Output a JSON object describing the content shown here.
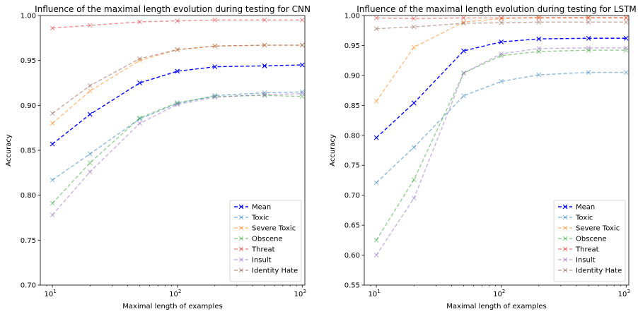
{
  "chart_data": [
    {
      "type": "line",
      "title": "Influence of the maximal length evolution during testing for CNN",
      "xlabel": "Maximal length of examples",
      "ylabel": "Accuracy",
      "xscale": "log",
      "xlim": [
        8,
        1050
      ],
      "ylim": [
        0.7,
        1.0
      ],
      "xticks": [
        {
          "value": 10,
          "base": "10",
          "exp": "1"
        },
        {
          "value": 100,
          "base": "10",
          "exp": "2"
        },
        {
          "value": 1000,
          "base": "10",
          "exp": "3"
        }
      ],
      "yticks": [
        "0.70",
        "0.75",
        "0.80",
        "0.85",
        "0.90",
        "0.95",
        "1.00"
      ],
      "x": [
        10,
        20,
        50,
        100,
        200,
        500,
        1000
      ],
      "legend_position": "lower-right",
      "series": [
        {
          "name": "Mean",
          "color": "#0000ff",
          "alpha": 1.0,
          "values": [
            0.857,
            0.89,
            0.925,
            0.938,
            0.943,
            0.944,
            0.945
          ]
        },
        {
          "name": "Toxic",
          "color": "#1f77b4",
          "alpha": 0.5,
          "values": [
            0.817,
            0.846,
            0.885,
            0.902,
            0.911,
            0.914,
            0.915
          ]
        },
        {
          "name": "Severe Toxic",
          "color": "#ff7f0e",
          "alpha": 0.5,
          "values": [
            0.88,
            0.916,
            0.95,
            0.962,
            0.966,
            0.967,
            0.967
          ]
        },
        {
          "name": "Obscene",
          "color": "#2ca02c",
          "alpha": 0.5,
          "values": [
            0.791,
            0.836,
            0.886,
            0.903,
            0.91,
            0.911,
            0.91
          ]
        },
        {
          "name": "Threat",
          "color": "#d62728",
          "alpha": 0.5,
          "values": [
            0.986,
            0.989,
            0.993,
            0.994,
            0.995,
            0.995,
            0.995
          ]
        },
        {
          "name": "Insult",
          "color": "#9467bd",
          "alpha": 0.5,
          "values": [
            0.778,
            0.826,
            0.88,
            0.901,
            0.909,
            0.912,
            0.913
          ]
        },
        {
          "name": "Identity Hate",
          "color": "#8c564b",
          "alpha": 0.5,
          "values": [
            0.891,
            0.922,
            0.952,
            0.962,
            0.966,
            0.967,
            0.967
          ]
        }
      ]
    },
    {
      "type": "line",
      "title": "Influence of the maximal length evolution during testing for LSTM",
      "xlabel": "Maximal length of examples",
      "ylabel": "Accuracy",
      "xscale": "log",
      "xlim": [
        8,
        1050
      ],
      "ylim": [
        0.55,
        1.0
      ],
      "xticks": [
        {
          "value": 10,
          "base": "10",
          "exp": "1"
        },
        {
          "value": 100,
          "base": "10",
          "exp": "2"
        },
        {
          "value": 1000,
          "base": "10",
          "exp": "3"
        }
      ],
      "yticks": [
        "0.55",
        "0.60",
        "0.65",
        "0.70",
        "0.75",
        "0.80",
        "0.85",
        "0.90",
        "0.95",
        "1.00"
      ],
      "x": [
        10,
        20,
        50,
        100,
        200,
        500,
        1000
      ],
      "legend_position": "lower-right",
      "series": [
        {
          "name": "Mean",
          "color": "#0000ff",
          "alpha": 1.0,
          "values": [
            0.796,
            0.854,
            0.941,
            0.956,
            0.961,
            0.962,
            0.962
          ]
        },
        {
          "name": "Toxic",
          "color": "#1f77b4",
          "alpha": 0.5,
          "values": [
            0.721,
            0.78,
            0.866,
            0.89,
            0.901,
            0.905,
            0.905
          ]
        },
        {
          "name": "Severe Toxic",
          "color": "#ff7f0e",
          "alpha": 0.5,
          "values": [
            0.857,
            0.947,
            0.989,
            0.995,
            0.997,
            0.997,
            0.997
          ]
        },
        {
          "name": "Obscene",
          "color": "#2ca02c",
          "alpha": 0.5,
          "values": [
            0.625,
            0.726,
            0.904,
            0.933,
            0.94,
            0.942,
            0.942
          ]
        },
        {
          "name": "Threat",
          "color": "#d62728",
          "alpha": 0.5,
          "values": [
            0.996,
            0.995,
            0.996,
            0.996,
            0.996,
            0.996,
            0.996
          ]
        },
        {
          "name": "Insult",
          "color": "#9467bd",
          "alpha": 0.5,
          "values": [
            0.6,
            0.695,
            0.904,
            0.936,
            0.945,
            0.946,
            0.946
          ]
        },
        {
          "name": "Identity Hate",
          "color": "#8c564b",
          "alpha": 0.5,
          "values": [
            0.978,
            0.981,
            0.987,
            0.988,
            0.989,
            0.989,
            0.989
          ]
        }
      ]
    }
  ]
}
